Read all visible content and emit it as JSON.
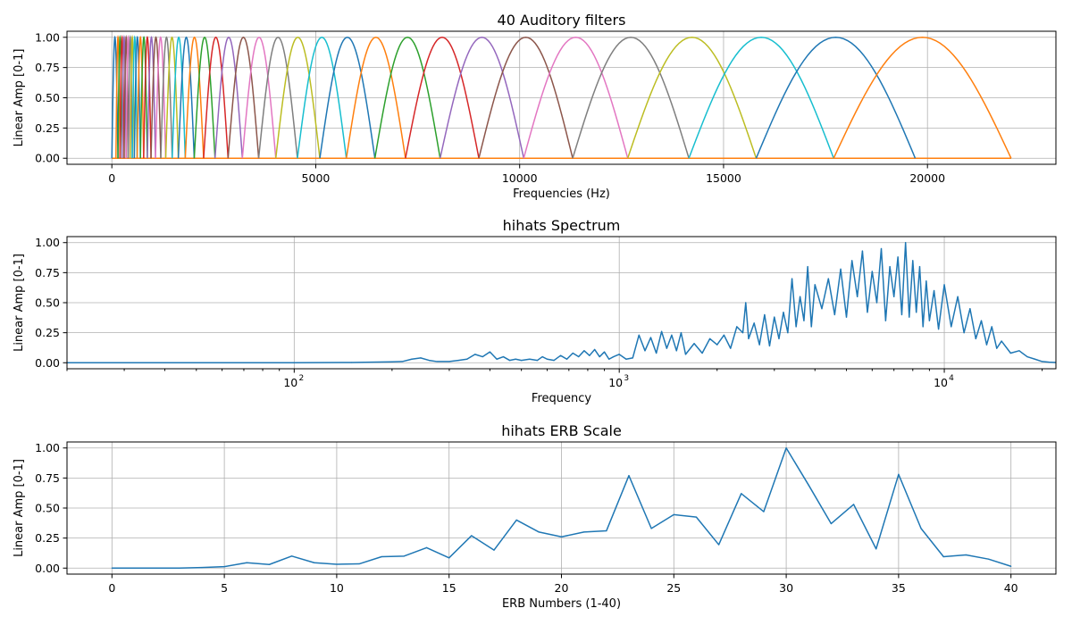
{
  "chart_data": [
    {
      "type": "line",
      "title": "40 Auditory filters",
      "xlabel": "Frequencies (Hz)",
      "ylabel": "Linear Amp [0-1]",
      "xlim": [
        -1100,
        23150
      ],
      "ylim": [
        -0.05,
        1.05
      ],
      "xticks": [
        0,
        5000,
        10000,
        15000,
        20000
      ],
      "xtick_labels": [
        "0",
        "5000",
        "10000",
        "15000",
        "20000"
      ],
      "yticks": [
        0,
        0.25,
        0.5,
        0.75,
        1.0
      ],
      "ytick_labels": [
        "0.00",
        "0.25",
        "0.50",
        "0.75",
        "1.00"
      ],
      "grid": true,
      "filter_shape": "half-sine triangular band per adjacent edge pair",
      "band_edges_hz": [
        0,
        100,
        150,
        200,
        250,
        300,
        350,
        400,
        450,
        500,
        550,
        620,
        700,
        780,
        870,
        960,
        1070,
        1200,
        1320,
        1480,
        1630,
        1800,
        2020,
        2250,
        2530,
        2850,
        3200,
        3600,
        4020,
        4550,
        5100,
        5750,
        6450,
        7200,
        8050,
        9000,
        10100,
        11300,
        12650,
        14150,
        15800,
        17700,
        19700,
        22050
      ],
      "color_cycle": [
        "#1f77b4",
        "#ff7f0e",
        "#2ca02c",
        "#d62728",
        "#9467bd",
        "#8c564b",
        "#e377c2",
        "#7f7f7f",
        "#bcbd22",
        "#17becf"
      ]
    },
    {
      "type": "line",
      "title": "hihats Spectrum",
      "xlabel": "Frequency",
      "ylabel": "Linear Amp [0-1]",
      "xscale": "log",
      "xlim": [
        20,
        22050
      ],
      "ylim": [
        -0.05,
        1.05
      ],
      "xticks": [
        100,
        1000,
        10000
      ],
      "xtick_labels": [
        {
          "base": "10",
          "exp": "2"
        },
        {
          "base": "10",
          "exp": "3"
        },
        {
          "base": "10",
          "exp": "4"
        }
      ],
      "yticks": [
        0,
        0.25,
        0.5,
        0.75,
        1.0
      ],
      "ytick_labels": [
        "0.00",
        "0.25",
        "0.50",
        "0.75",
        "1.00"
      ],
      "grid": true,
      "color": "#1f77b4",
      "series": [
        {
          "x": [
            20,
            60,
            100,
            150,
            200,
            215,
            230,
            245,
            260,
            275,
            300,
            320,
            340,
            360,
            380,
            400,
            420,
            440,
            460,
            480,
            500,
            530,
            560,
            580,
            600,
            630,
            660,
            690,
            720,
            750,
            780,
            810,
            840,
            870,
            900,
            930,
            960,
            1000,
            1050,
            1100,
            1150,
            1200,
            1250,
            1300,
            1350,
            1400,
            1450,
            1500,
            1550,
            1600,
            1700,
            1800,
            1900,
            2000,
            2100,
            2200,
            2300,
            2400,
            2450,
            2500,
            2600,
            2700,
            2800,
            2900,
            3000,
            3100,
            3200,
            3300,
            3400,
            3500,
            3600,
            3700,
            3800,
            3900,
            4000,
            4200,
            4400,
            4600,
            4800,
            5000,
            5200,
            5400,
            5600,
            5800,
            6000,
            6200,
            6400,
            6600,
            6800,
            7000,
            7200,
            7400,
            7600,
            7800,
            8000,
            8200,
            8400,
            8600,
            8800,
            9000,
            9300,
            9600,
            10000,
            10500,
            11000,
            11500,
            12000,
            12500,
            13000,
            13500,
            14000,
            14500,
            15000,
            16000,
            17000,
            18000,
            19000,
            20000,
            21000,
            22050
          ],
          "y": [
            0.0,
            0.0,
            0.0,
            0.002,
            0.008,
            0.01,
            0.03,
            0.04,
            0.02,
            0.01,
            0.01,
            0.02,
            0.03,
            0.07,
            0.05,
            0.09,
            0.03,
            0.05,
            0.02,
            0.03,
            0.02,
            0.03,
            0.02,
            0.05,
            0.03,
            0.02,
            0.06,
            0.03,
            0.08,
            0.05,
            0.1,
            0.06,
            0.11,
            0.05,
            0.09,
            0.03,
            0.05,
            0.07,
            0.03,
            0.04,
            0.23,
            0.1,
            0.21,
            0.08,
            0.26,
            0.12,
            0.23,
            0.1,
            0.25,
            0.07,
            0.16,
            0.08,
            0.2,
            0.15,
            0.23,
            0.12,
            0.3,
            0.25,
            0.5,
            0.2,
            0.33,
            0.15,
            0.4,
            0.14,
            0.38,
            0.2,
            0.42,
            0.25,
            0.7,
            0.3,
            0.55,
            0.35,
            0.8,
            0.3,
            0.65,
            0.45,
            0.7,
            0.4,
            0.78,
            0.38,
            0.85,
            0.55,
            0.93,
            0.42,
            0.76,
            0.5,
            0.95,
            0.35,
            0.8,
            0.55,
            0.88,
            0.4,
            1.0,
            0.38,
            0.85,
            0.42,
            0.8,
            0.3,
            0.68,
            0.35,
            0.6,
            0.28,
            0.65,
            0.3,
            0.55,
            0.25,
            0.45,
            0.2,
            0.35,
            0.15,
            0.3,
            0.12,
            0.18,
            0.08,
            0.1,
            0.05,
            0.03,
            0.01,
            0.005,
            0.002
          ]
        }
      ]
    },
    {
      "type": "line",
      "title": "hihats ERB Scale",
      "xlabel": "ERB Numbers (1-40)",
      "ylabel": "Linear Amp [0-1]",
      "xlim": [
        -2,
        42
      ],
      "ylim": [
        -0.05,
        1.05
      ],
      "xticks": [
        0,
        5,
        10,
        15,
        20,
        25,
        30,
        35,
        40
      ],
      "xtick_labels": [
        "0",
        "5",
        "10",
        "15",
        "20",
        "25",
        "30",
        "35",
        "40"
      ],
      "yticks": [
        0,
        0.25,
        0.5,
        0.75,
        1.0
      ],
      "ytick_labels": [
        "0.00",
        "0.25",
        "0.50",
        "0.75",
        "1.00"
      ],
      "grid": true,
      "color": "#1f77b4",
      "series": [
        {
          "x": [
            0,
            1,
            2,
            3,
            4,
            5,
            6,
            7,
            8,
            9,
            10,
            11,
            12,
            13,
            14,
            15,
            16,
            17,
            18,
            19,
            20,
            21,
            22,
            23,
            24,
            25,
            26,
            27,
            28,
            29,
            30,
            31,
            32,
            33,
            34,
            35,
            36,
            37,
            38,
            39,
            40
          ],
          "y": [
            0.0,
            0.0,
            0.0,
            0.0,
            0.005,
            0.012,
            0.045,
            0.03,
            0.1,
            0.045,
            0.032,
            0.035,
            0.095,
            0.1,
            0.17,
            0.085,
            0.27,
            0.15,
            0.4,
            0.3,
            0.26,
            0.3,
            0.31,
            0.77,
            0.33,
            0.445,
            0.425,
            0.195,
            0.62,
            0.47,
            1.0,
            0.69,
            0.37,
            0.53,
            0.16,
            0.78,
            0.33,
            0.095,
            0.11,
            0.075,
            0.015
          ]
        }
      ]
    }
  ]
}
